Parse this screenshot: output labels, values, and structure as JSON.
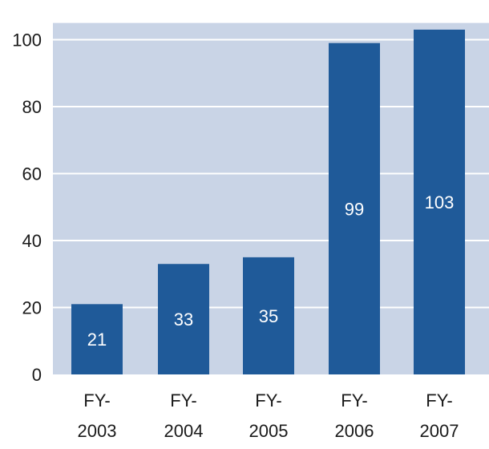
{
  "chart_data": {
    "type": "bar",
    "categories": [
      [
        "FY-",
        "2003"
      ],
      [
        "FY-",
        "2004"
      ],
      [
        "FY-",
        "2005"
      ],
      [
        "FY-",
        "2006"
      ],
      [
        "FY-",
        "2007"
      ]
    ],
    "values": [
      21,
      33,
      35,
      99,
      103
    ],
    "data_labels": [
      "21",
      "33",
      "35",
      "99",
      "103"
    ],
    "ylim": [
      0,
      105
    ],
    "yticks": [
      0,
      20,
      40,
      60,
      80,
      100
    ],
    "grid": true,
    "colors": {
      "bar": "#1f5a99",
      "plot_background": "#c9d4e6",
      "gridline": "#ffffff"
    }
  }
}
